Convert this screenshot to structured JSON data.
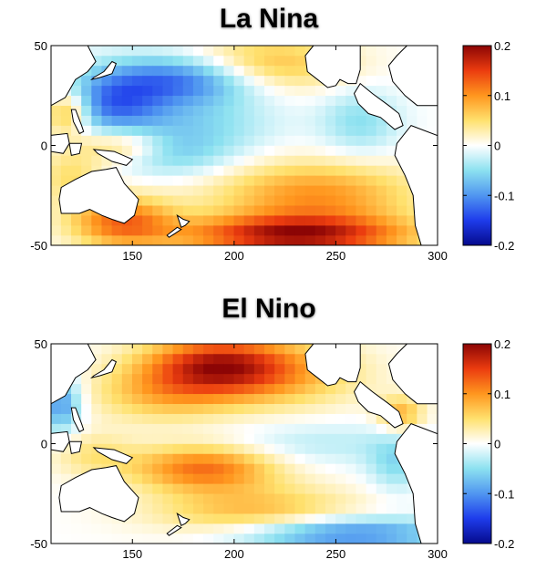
{
  "chart_data": [
    {
      "type": "heatmap",
      "title": "La Nina",
      "x_ticks": [
        150,
        200,
        250,
        300
      ],
      "y_ticks": [
        50,
        0,
        -50
      ],
      "xlim": [
        110,
        300
      ],
      "ylim": [
        -50,
        50
      ],
      "colorbar": {
        "ticks": [
          0.2,
          0.1,
          0,
          -0.1,
          -0.2
        ],
        "tick_labels": [
          "0.2",
          "0.1",
          "0",
          "-0.1",
          "-0.2"
        ],
        "range": [
          -0.2,
          0.2
        ]
      },
      "anomaly_centers": [
        {
          "lon": 175,
          "lat": 33,
          "value": -0.13,
          "sx": 30,
          "sy": 9
        },
        {
          "lon": 140,
          "lat": 20,
          "value": -0.1,
          "sx": 18,
          "sy": 10
        },
        {
          "lon": 180,
          "lat": 10,
          "value": -0.05,
          "sx": 28,
          "sy": 10
        },
        {
          "lon": 170,
          "lat": -5,
          "value": -0.05,
          "sx": 22,
          "sy": 8
        },
        {
          "lon": 230,
          "lat": -45,
          "value": 0.18,
          "sx": 40,
          "sy": 7
        },
        {
          "lon": 240,
          "lat": -25,
          "value": 0.1,
          "sx": 35,
          "sy": 12
        },
        {
          "lon": 215,
          "lat": 40,
          "value": 0.09,
          "sx": 28,
          "sy": 10
        },
        {
          "lon": 145,
          "lat": -38,
          "value": 0.12,
          "sx": 18,
          "sy": 9
        },
        {
          "lon": 118,
          "lat": 17,
          "value": 0.1,
          "sx": 8,
          "sy": 8
        },
        {
          "lon": 145,
          "lat": 0,
          "value": 0.07,
          "sx": 15,
          "sy": 6
        },
        {
          "lon": 262,
          "lat": 12,
          "value": -0.05,
          "sx": 14,
          "sy": 12
        },
        {
          "lon": 120,
          "lat": -15,
          "value": 0.05,
          "sx": 12,
          "sy": 10
        }
      ]
    },
    {
      "type": "heatmap",
      "title": "El Nino",
      "x_ticks": [
        150,
        200,
        250,
        300
      ],
      "y_ticks": [
        50,
        0,
        -50
      ],
      "xlim": [
        110,
        300
      ],
      "ylim": [
        -50,
        50
      ],
      "colorbar": {
        "ticks": [
          0.2,
          0.1,
          0,
          -0.1,
          -0.2
        ],
        "tick_labels": [
          "0.2",
          "0.1",
          "0",
          "-0.1",
          "-0.2"
        ],
        "range": [
          -0.2,
          0.2
        ]
      },
      "anomaly_centers": [
        {
          "lon": 190,
          "lat": 40,
          "value": 0.14,
          "sx": 25,
          "sy": 10
        },
        {
          "lon": 220,
          "lat": 35,
          "value": 0.08,
          "sx": 30,
          "sy": 12
        },
        {
          "lon": 165,
          "lat": 25,
          "value": 0.07,
          "sx": 25,
          "sy": 10
        },
        {
          "lon": 185,
          "lat": -12,
          "value": 0.12,
          "sx": 25,
          "sy": 8
        },
        {
          "lon": 210,
          "lat": -35,
          "value": 0.08,
          "sx": 35,
          "sy": 10
        },
        {
          "lon": 240,
          "lat": 0,
          "value": -0.03,
          "sx": 35,
          "sy": 8
        },
        {
          "lon": 250,
          "lat": -45,
          "value": -0.12,
          "sx": 40,
          "sy": 6
        },
        {
          "lon": 115,
          "lat": 20,
          "value": -0.1,
          "sx": 7,
          "sy": 10
        },
        {
          "lon": 130,
          "lat": -5,
          "value": 0.04,
          "sx": 15,
          "sy": 8
        },
        {
          "lon": 282,
          "lat": 15,
          "value": 0.08,
          "sx": 8,
          "sy": 6
        },
        {
          "lon": 280,
          "lat": -10,
          "value": -0.05,
          "sx": 10,
          "sy": 10
        }
      ]
    }
  ]
}
